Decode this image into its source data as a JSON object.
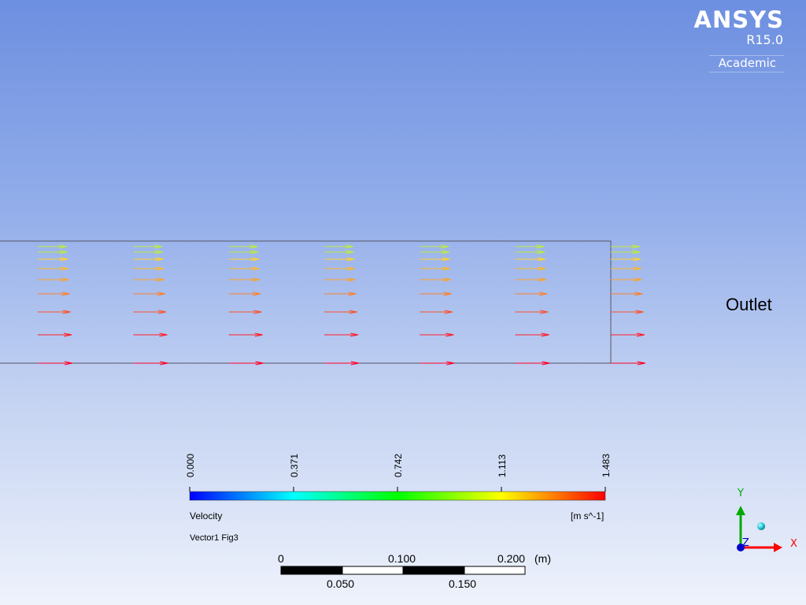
{
  "logo": {
    "brand": "ANSYS",
    "version": "R15.0",
    "edition": "Academic"
  },
  "boundary_label": "Outlet",
  "legend": {
    "title": "Velocity",
    "units": "[m s^-1]",
    "plot_name": "Vector1 Fig3",
    "ticks": [
      "0.000",
      "0.371",
      "0.742",
      "1.113",
      "1.483"
    ],
    "colors": [
      "#0000ff",
      "#00ffff",
      "#00ff00",
      "#ffff00",
      "#ff0000"
    ]
  },
  "scale_bar": {
    "top_labels": [
      "0",
      "0.100",
      "0.200"
    ],
    "bottom_labels": [
      "0.050",
      "0.150"
    ],
    "unit": "(m)"
  },
  "axes": {
    "x": "X",
    "y": "Y",
    "z": "Z",
    "x_color": "#ff0000",
    "y_color": "#00aa00",
    "z_color": "#0000cc"
  },
  "vectors": {
    "columns": 7,
    "rows_velocity_fraction": [
      0.6,
      0.64,
      0.68,
      0.72,
      0.78,
      0.86,
      0.95,
      1.0
    ]
  }
}
